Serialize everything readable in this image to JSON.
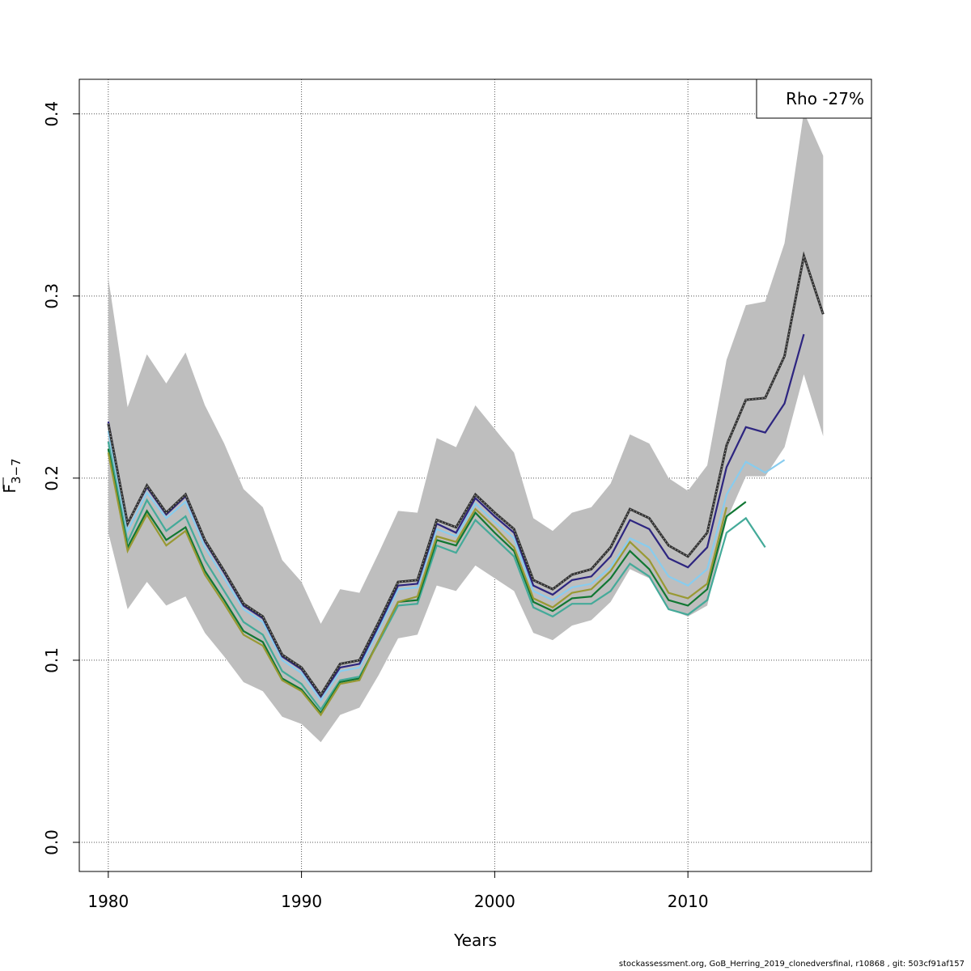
{
  "chart_data": {
    "type": "line",
    "xlabel": "Years",
    "ylabel_main": "F",
    "ylabel_sub": "3−7",
    "xlim": [
      1978.5,
      2019.5
    ],
    "ylim": [
      -0.016,
      0.419
    ],
    "xticks": [
      1980,
      1990,
      2000,
      2010
    ],
    "yticks": [
      0.0,
      0.1,
      0.2,
      0.3,
      0.4
    ],
    "ytick_labels": [
      "0.0",
      "0.1",
      "0.2",
      "0.3",
      "0.4"
    ],
    "grid": true,
    "legend": {
      "text": "Rho -27%",
      "placement": "top-right"
    },
    "band": {
      "x": [
        1980,
        1981,
        1982,
        1983,
        1984,
        1985,
        1986,
        1987,
        1988,
        1989,
        1990,
        1991,
        1992,
        1993,
        1994,
        1995,
        1996,
        1997,
        1998,
        1999,
        2000,
        2001,
        2002,
        2003,
        2004,
        2005,
        2006,
        2007,
        2008,
        2009,
        2010,
        2011,
        2012,
        2013,
        2014,
        2015,
        2016,
        2017
      ],
      "upper": [
        0.31,
        0.239,
        0.268,
        0.252,
        0.269,
        0.24,
        0.219,
        0.194,
        0.184,
        0.155,
        0.143,
        0.12,
        0.139,
        0.137,
        0.159,
        0.182,
        0.181,
        0.222,
        0.217,
        0.24,
        0.227,
        0.214,
        0.178,
        0.171,
        0.181,
        0.184,
        0.197,
        0.224,
        0.219,
        0.2,
        0.193,
        0.207,
        0.265,
        0.295,
        0.297,
        0.329,
        0.401,
        0.377
      ],
      "lower": [
        0.17,
        0.128,
        0.143,
        0.13,
        0.135,
        0.115,
        0.102,
        0.088,
        0.083,
        0.069,
        0.065,
        0.055,
        0.07,
        0.074,
        0.092,
        0.112,
        0.114,
        0.141,
        0.138,
        0.152,
        0.145,
        0.138,
        0.115,
        0.111,
        0.119,
        0.122,
        0.132,
        0.15,
        0.145,
        0.128,
        0.124,
        0.13,
        0.177,
        0.201,
        0.201,
        0.217,
        0.257,
        0.223
      ]
    },
    "series": [
      {
        "color": "#333333",
        "style": "dotted-main",
        "x": [
          1980,
          1981,
          1982,
          1983,
          1984,
          1985,
          1986,
          1987,
          1988,
          1989,
          1990,
          1991,
          1992,
          1993,
          1994,
          1995,
          1996,
          1997,
          1998,
          1999,
          2000,
          2001,
          2002,
          2003,
          2004,
          2005,
          2006,
          2007,
          2008,
          2009,
          2010,
          2011,
          2012,
          2013,
          2014,
          2015,
          2016,
          2017
        ],
        "values": [
          0.23,
          0.175,
          0.196,
          0.181,
          0.191,
          0.166,
          0.149,
          0.131,
          0.124,
          0.103,
          0.096,
          0.081,
          0.098,
          0.1,
          0.121,
          0.143,
          0.144,
          0.177,
          0.173,
          0.191,
          0.181,
          0.172,
          0.144,
          0.139,
          0.147,
          0.15,
          0.162,
          0.183,
          0.178,
          0.163,
          0.157,
          0.17,
          0.218,
          0.243,
          0.244,
          0.267,
          0.322,
          0.29
        ]
      },
      {
        "color": "#2d2580",
        "x": [
          1980,
          1981,
          1982,
          1983,
          1984,
          1985,
          1986,
          1987,
          1988,
          1989,
          1990,
          1991,
          1992,
          1993,
          1994,
          1995,
          1996,
          1997,
          1998,
          1999,
          2000,
          2001,
          2002,
          2003,
          2004,
          2005,
          2006,
          2007,
          2008,
          2009,
          2010,
          2011,
          2012,
          2013,
          2014,
          2015,
          2016
        ],
        "values": [
          0.231,
          0.175,
          0.195,
          0.18,
          0.19,
          0.165,
          0.148,
          0.13,
          0.123,
          0.102,
          0.095,
          0.08,
          0.096,
          0.098,
          0.119,
          0.141,
          0.142,
          0.175,
          0.17,
          0.189,
          0.179,
          0.17,
          0.141,
          0.136,
          0.144,
          0.146,
          0.157,
          0.177,
          0.172,
          0.156,
          0.151,
          0.162,
          0.206,
          0.228,
          0.225,
          0.241,
          0.279
        ]
      },
      {
        "color": "#88ccee",
        "x": [
          1980,
          1981,
          1982,
          1983,
          1984,
          1985,
          1986,
          1987,
          1988,
          1989,
          1990,
          1991,
          1992,
          1993,
          1994,
          1995,
          1996,
          1997,
          1998,
          1999,
          2000,
          2001,
          2002,
          2003,
          2004,
          2005,
          2006,
          2007,
          2008,
          2009,
          2010,
          2011,
          2012,
          2013,
          2014,
          2015
        ],
        "values": [
          0.226,
          0.171,
          0.192,
          0.178,
          0.187,
          0.162,
          0.145,
          0.128,
          0.121,
          0.1,
          0.093,
          0.078,
          0.094,
          0.096,
          0.117,
          0.139,
          0.14,
          0.172,
          0.168,
          0.186,
          0.176,
          0.167,
          0.138,
          0.133,
          0.14,
          0.142,
          0.151,
          0.167,
          0.162,
          0.146,
          0.141,
          0.15,
          0.191,
          0.209,
          0.203,
          0.21
        ]
      },
      {
        "color": "#999933",
        "x": [
          1980,
          1981,
          1982,
          1983,
          1984,
          1985,
          1986,
          1987,
          1988,
          1989,
          1990,
          1991,
          1992,
          1993,
          1994,
          1995,
          1996,
          1997,
          1998,
          1999,
          2000,
          2001,
          2002,
          2003,
          2004,
          2005,
          2006,
          2007,
          2008,
          2009,
          2010,
          2011,
          2012
        ],
        "values": [
          0.214,
          0.16,
          0.18,
          0.163,
          0.171,
          0.147,
          0.131,
          0.114,
          0.108,
          0.089,
          0.083,
          0.07,
          0.087,
          0.089,
          0.111,
          0.132,
          0.135,
          0.168,
          0.165,
          0.183,
          0.173,
          0.162,
          0.134,
          0.129,
          0.137,
          0.139,
          0.149,
          0.165,
          0.155,
          0.137,
          0.134,
          0.142,
          0.184
        ]
      },
      {
        "color": "#117733",
        "x": [
          1980,
          1981,
          1982,
          1983,
          1984,
          1985,
          1986,
          1987,
          1988,
          1989,
          1990,
          1991,
          1992,
          1993,
          1994,
          1995,
          1996,
          1997,
          1998,
          1999,
          2000,
          2001,
          2002,
          2003,
          2004,
          2005,
          2006,
          2007,
          2008,
          2009,
          2010,
          2011,
          2012,
          2013
        ],
        "values": [
          0.216,
          0.162,
          0.182,
          0.166,
          0.173,
          0.149,
          0.133,
          0.116,
          0.11,
          0.09,
          0.084,
          0.071,
          0.088,
          0.09,
          0.111,
          0.132,
          0.133,
          0.166,
          0.163,
          0.181,
          0.17,
          0.16,
          0.132,
          0.127,
          0.134,
          0.135,
          0.145,
          0.16,
          0.15,
          0.133,
          0.13,
          0.139,
          0.179,
          0.187
        ]
      },
      {
        "color": "#44aa99",
        "x": [
          1980,
          1981,
          1982,
          1983,
          1984,
          1985,
          1986,
          1987,
          1988,
          1989,
          1990,
          1991,
          1992,
          1993,
          1994,
          1995,
          1996,
          1997,
          1998,
          1999,
          2000,
          2001,
          2002,
          2003,
          2004,
          2005,
          2006,
          2007,
          2008,
          2009,
          2010,
          2011,
          2012,
          2013,
          2014
        ],
        "values": [
          0.22,
          0.165,
          0.188,
          0.171,
          0.179,
          0.155,
          0.138,
          0.121,
          0.114,
          0.094,
          0.087,
          0.073,
          0.089,
          0.091,
          0.11,
          0.13,
          0.131,
          0.163,
          0.159,
          0.177,
          0.167,
          0.157,
          0.129,
          0.124,
          0.131,
          0.131,
          0.138,
          0.153,
          0.146,
          0.128,
          0.125,
          0.133,
          0.17,
          0.178,
          0.162
        ]
      }
    ]
  },
  "footer": "stockassessment.org, GoB_Herring_2019_clonedversfinal, r10868 , git: 503cf91af157"
}
